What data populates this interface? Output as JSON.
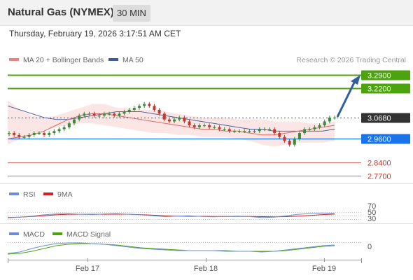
{
  "header": {
    "instrument": "Natural Gas (NYMEX)",
    "timeframe": "30 MIN"
  },
  "datetime": "Thursday, February 19, 2026 3:17:51 AM CET",
  "legend": {
    "ma20": "MA 20 + Bollinger Bands",
    "ma50": "MA 50",
    "credit": "Research © 2026 Trading Central"
  },
  "rsi_legend": {
    "rsi": "RSI",
    "ma": "9MA"
  },
  "macd_legend": {
    "macd": "MACD",
    "signal": "MACD Signal"
  },
  "colors": {
    "candle_up": "#3a8a3a",
    "candle_down": "#c0392b",
    "ma20": "#e06666",
    "ma50": "#3d5a99",
    "bollinger": "#fbdcdc",
    "resistance": "#4ca30d",
    "pivot": "#1a73e8",
    "support": "#e06666",
    "current": "#333333",
    "arrow": "#2f5f9e",
    "rsi": "#6a8fd8",
    "macd": "#6a8fd8",
    "macd_signal": "#4ca30d"
  },
  "chart_data": {
    "type": "candlestick",
    "x_labels": [
      "Feb 17",
      "Feb 18",
      "Feb 19"
    ],
    "price_levels": [
      {
        "label": "3.2900",
        "value": 3.29,
        "kind": "resistance"
      },
      {
        "label": "3.2200",
        "value": 3.22,
        "kind": "resistance"
      },
      {
        "label": "3.0680",
        "value": 3.068,
        "kind": "current"
      },
      {
        "label": "2.9600",
        "value": 2.96,
        "kind": "pivot"
      },
      {
        "label": "2.8400",
        "value": 2.84,
        "kind": "support"
      },
      {
        "label": "2.7700",
        "value": 2.77,
        "kind": "support"
      }
    ],
    "close_series": [
      2.99,
      2.98,
      2.97,
      2.97,
      2.98,
      2.99,
      2.99,
      2.98,
      2.99,
      3.0,
      3.01,
      3.02,
      3.04,
      3.06,
      3.08,
      3.09,
      3.09,
      3.08,
      3.08,
      3.09,
      3.09,
      3.08,
      3.09,
      3.1,
      3.11,
      3.12,
      3.13,
      3.14,
      3.13,
      3.11,
      3.09,
      3.06,
      3.05,
      3.06,
      3.07,
      3.05,
      3.03,
      3.02,
      3.03,
      3.03,
      3.02,
      3.02,
      3.01,
      3.01,
      3.0,
      3.0,
      3.0,
      3.0,
      3.0,
      3.0,
      3.01,
      3.01,
      3.01,
      2.99,
      2.97,
      2.95,
      2.93,
      2.96,
      2.99,
      3.01,
      3.01,
      3.02,
      3.03,
      3.05,
      3.07,
      3.07
    ],
    "bollinger": {
      "upper": [
        3.16,
        3.11,
        3.08,
        3.07,
        3.08,
        3.1,
        3.12,
        3.14,
        3.14,
        3.12,
        3.12,
        3.11,
        3.11,
        3.1,
        3.09,
        3.08,
        3.07,
        3.07,
        3.07,
        3.06,
        3.06,
        3.06,
        3.05,
        3.05,
        3.05,
        3.04,
        3.04,
        3.05
      ],
      "lower": [
        2.93,
        2.96,
        2.98,
        3.0,
        3.02,
        3.03,
        3.04,
        3.04,
        3.03,
        3.02,
        3.01,
        3.0,
        2.99,
        2.99,
        2.98,
        2.98,
        2.97,
        2.97,
        2.97,
        2.96,
        2.95,
        2.93,
        2.92,
        2.93,
        2.94,
        2.94,
        2.94,
        2.95
      ]
    },
    "ma20": [
      2.96,
      2.97,
      2.98,
      3.0,
      3.03,
      3.06,
      3.08,
      3.09,
      3.09,
      3.08,
      3.07,
      3.06,
      3.05,
      3.04,
      3.03,
      3.02,
      3.01,
      3.01,
      3.0,
      3.0,
      2.99,
      2.98,
      2.98,
      2.99,
      3.0,
      3.01,
      3.02,
      3.03
    ],
    "ma50": [
      3.13,
      3.11,
      3.09,
      3.07,
      3.06,
      3.06,
      3.07,
      3.08,
      3.09,
      3.1,
      3.1,
      3.1,
      3.09,
      3.08,
      3.07,
      3.06,
      3.05,
      3.04,
      3.03,
      3.02,
      3.01,
      3.01,
      3.0,
      3.0,
      3.0,
      3.0,
      3.0,
      3.01
    ],
    "rsi": {
      "levels": [
        70,
        50,
        30
      ],
      "level_labels": [
        "70",
        "50",
        "30"
      ],
      "rsi": [
        38,
        42,
        48,
        55,
        60,
        62,
        58,
        56,
        60,
        62,
        58,
        55,
        50,
        45,
        48,
        50,
        46,
        44,
        46,
        48,
        45,
        40,
        42,
        50,
        58,
        62,
        65,
        62
      ],
      "ma9": [
        40,
        42,
        46,
        50,
        55,
        58,
        58,
        58,
        58,
        59,
        58,
        56,
        53,
        50,
        48,
        47,
        47,
        46,
        46,
        46,
        46,
        45,
        44,
        45,
        48,
        52,
        56,
        59
      ]
    },
    "macd": {
      "zero_label": "0",
      "macd": [
        -0.5,
        -0.3,
        0.2,
        0.6,
        0.9,
        1.0,
        1.0,
        0.9,
        0.8,
        0.6,
        0.4,
        0.2,
        0.1,
        0.0,
        -0.1,
        -0.1,
        -0.1,
        -0.1,
        -0.2,
        -0.2,
        -0.2,
        -0.3,
        -0.2,
        0.0,
        0.2,
        0.4,
        0.6,
        0.7
      ],
      "signal": [
        -0.6,
        -0.5,
        -0.2,
        0.2,
        0.6,
        0.8,
        0.9,
        0.9,
        0.8,
        0.7,
        0.5,
        0.3,
        0.2,
        0.1,
        0.0,
        -0.1,
        -0.1,
        -0.1,
        -0.1,
        -0.2,
        -0.2,
        -0.2,
        -0.2,
        -0.1,
        0.1,
        0.3,
        0.5,
        0.6
      ]
    }
  }
}
